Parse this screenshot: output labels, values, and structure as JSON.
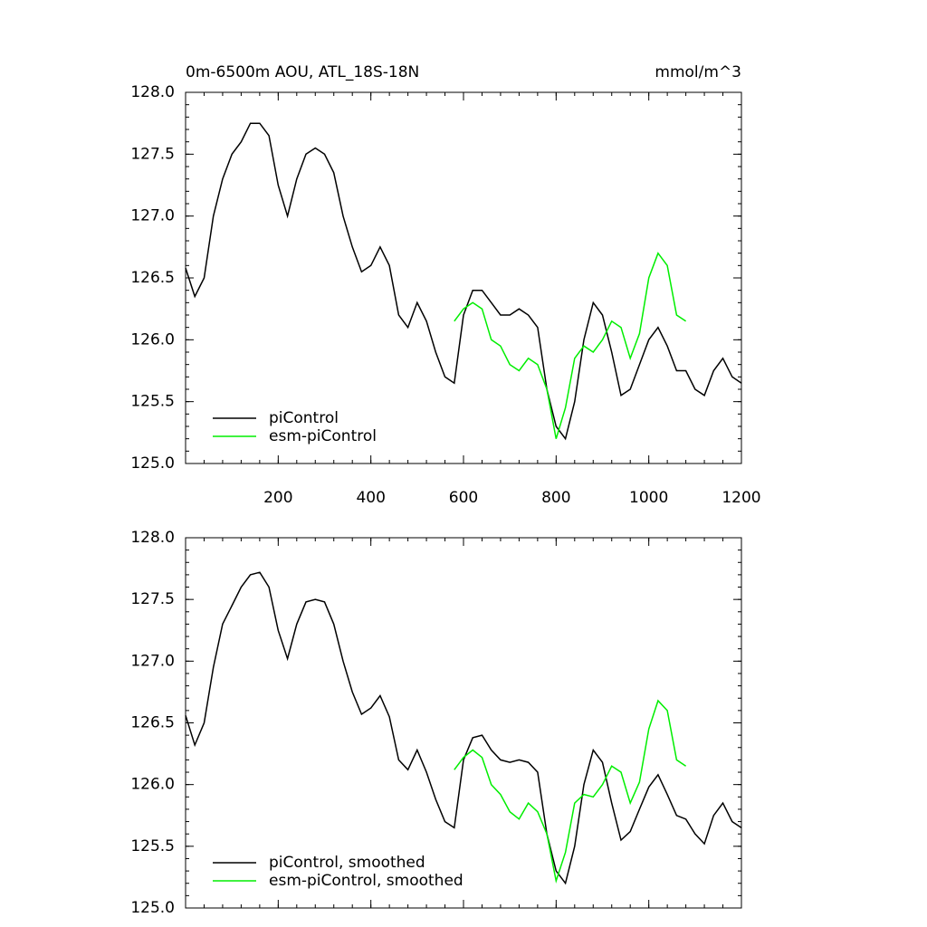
{
  "chart_data": [
    {
      "type": "line",
      "title": "0m-6500m AOU, ATL_18S-18N",
      "units": "mmol/m^3",
      "xlim": [
        0,
        1200
      ],
      "xticks": [
        200,
        400,
        600,
        800,
        1000,
        1200
      ],
      "ylim": [
        125,
        128
      ],
      "yticks": [
        {
          "value": 125,
          "label": "125.0"
        },
        {
          "value": 125.5,
          "label": "125.5"
        },
        {
          "value": 126,
          "label": "126.0"
        },
        {
          "value": 126.5,
          "label": "126.5"
        },
        {
          "value": 127,
          "label": "127.0"
        },
        {
          "value": 127.5,
          "label": "127.5"
        },
        {
          "value": 128,
          "label": "128.0"
        }
      ],
      "legend": "lower left",
      "series": [
        {
          "name": "piControl",
          "color": "#000000",
          "x": [
            0,
            20,
            40,
            60,
            80,
            100,
            120,
            140,
            160,
            180,
            200,
            220,
            240,
            260,
            280,
            300,
            320,
            340,
            360,
            380,
            400,
            420,
            440,
            460,
            480,
            500,
            520,
            540,
            560,
            580,
            600,
            620,
            640,
            660,
            680,
            700,
            720,
            740,
            760,
            780,
            800,
            820,
            840,
            860,
            880,
            900,
            920,
            940,
            960,
            980,
            1000,
            1020,
            1040,
            1060,
            1080,
            1100,
            1120,
            1140,
            1160,
            1180,
            1200
          ],
          "values": [
            126.58,
            126.35,
            126.5,
            127.0,
            127.3,
            127.5,
            127.6,
            127.75,
            127.75,
            127.65,
            127.25,
            127.0,
            127.3,
            127.5,
            127.55,
            127.5,
            127.35,
            127.0,
            126.75,
            126.55,
            126.6,
            126.75,
            126.6,
            126.2,
            126.1,
            126.3,
            126.15,
            125.9,
            125.7,
            125.65,
            126.2,
            126.4,
            126.4,
            126.3,
            126.2,
            126.2,
            126.25,
            126.2,
            126.1,
            125.6,
            125.3,
            125.2,
            125.5,
            126.0,
            126.3,
            126.2,
            125.9,
            125.55,
            125.6,
            125.8,
            126.0,
            126.1,
            125.95,
            125.75,
            125.75,
            125.6,
            125.55,
            125.75,
            125.85,
            125.7,
            125.65
          ]
        },
        {
          "name": "esm-piControl",
          "color": "#00ee00",
          "x": [
            580,
            600,
            620,
            640,
            660,
            680,
            700,
            720,
            740,
            760,
            780,
            800,
            820,
            840,
            860,
            880,
            900,
            920,
            940,
            960,
            980,
            1000,
            1020,
            1040,
            1060,
            1080
          ],
          "values": [
            126.15,
            126.25,
            126.3,
            126.25,
            126.0,
            125.95,
            125.8,
            125.75,
            125.85,
            125.8,
            125.6,
            125.2,
            125.45,
            125.85,
            125.95,
            125.9,
            126.0,
            126.15,
            126.1,
            125.85,
            126.05,
            126.5,
            126.7,
            126.6,
            126.2,
            126.15
          ]
        }
      ]
    },
    {
      "type": "line",
      "xlim": [
        0,
        1200
      ],
      "ylim": [
        125,
        128
      ],
      "yticks": [
        {
          "value": 125,
          "label": "125.0"
        },
        {
          "value": 125.5,
          "label": "125.5"
        },
        {
          "value": 126,
          "label": "126.0"
        },
        {
          "value": 126.5,
          "label": "126.5"
        },
        {
          "value": 127,
          "label": "127.0"
        },
        {
          "value": 127.5,
          "label": "127.5"
        },
        {
          "value": 128,
          "label": "128.0"
        }
      ],
      "legend": "lower left",
      "series": [
        {
          "name": "piControl, smoothed",
          "color": "#000000",
          "x": [
            0,
            20,
            40,
            60,
            80,
            100,
            120,
            140,
            160,
            180,
            200,
            220,
            240,
            260,
            280,
            300,
            320,
            340,
            360,
            380,
            400,
            420,
            440,
            460,
            480,
            500,
            520,
            540,
            560,
            580,
            600,
            620,
            640,
            660,
            680,
            700,
            720,
            740,
            760,
            780,
            800,
            820,
            840,
            860,
            880,
            900,
            920,
            940,
            960,
            980,
            1000,
            1020,
            1040,
            1060,
            1080,
            1100,
            1120,
            1140,
            1160,
            1180,
            1200
          ],
          "values": [
            126.56,
            126.32,
            126.5,
            126.95,
            127.3,
            127.45,
            127.6,
            127.7,
            127.72,
            127.6,
            127.25,
            127.02,
            127.3,
            127.48,
            127.5,
            127.48,
            127.3,
            127.0,
            126.75,
            126.57,
            126.62,
            126.72,
            126.55,
            126.2,
            126.12,
            126.28,
            126.1,
            125.88,
            125.7,
            125.65,
            126.2,
            126.38,
            126.4,
            126.28,
            126.2,
            126.18,
            126.2,
            126.18,
            126.1,
            125.6,
            125.3,
            125.2,
            125.5,
            126.0,
            126.28,
            126.18,
            125.85,
            125.55,
            125.62,
            125.8,
            125.98,
            126.08,
            125.92,
            125.75,
            125.72,
            125.6,
            125.52,
            125.75,
            125.85,
            125.7,
            125.65
          ]
        },
        {
          "name": "esm-piControl, smoothed",
          "color": "#00ee00",
          "x": [
            580,
            600,
            620,
            640,
            660,
            680,
            700,
            720,
            740,
            760,
            780,
            800,
            820,
            840,
            860,
            880,
            900,
            920,
            940,
            960,
            980,
            1000,
            1020,
            1040,
            1060,
            1080
          ],
          "values": [
            126.12,
            126.22,
            126.28,
            126.22,
            126.0,
            125.92,
            125.78,
            125.72,
            125.85,
            125.78,
            125.6,
            125.22,
            125.45,
            125.85,
            125.92,
            125.9,
            126.0,
            126.15,
            126.1,
            125.85,
            126.02,
            126.45,
            126.68,
            126.6,
            126.2,
            126.15
          ]
        }
      ]
    }
  ]
}
